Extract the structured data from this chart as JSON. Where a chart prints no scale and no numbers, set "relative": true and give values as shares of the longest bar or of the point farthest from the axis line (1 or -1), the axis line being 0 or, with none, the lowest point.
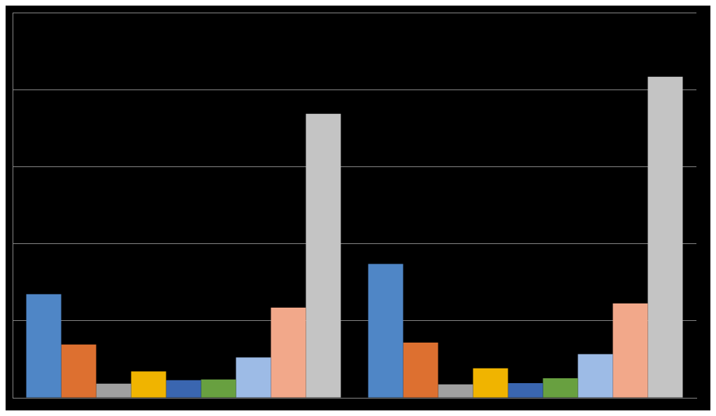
{
  "chart_data": {
    "type": "bar",
    "relative": true,
    "grid": "y",
    "legend": false,
    "categories": [
      null,
      null
    ],
    "series": [
      {
        "color": "#4f86c6",
        "values": [
          0.323,
          0.417
        ]
      },
      {
        "color": "#dd7030",
        "values": [
          0.166,
          0.172
        ]
      },
      {
        "color": "#a0a0a0",
        "values": [
          0.044,
          0.042
        ]
      },
      {
        "color": "#f0b400",
        "values": [
          0.082,
          0.092
        ]
      },
      {
        "color": "#3a66b0",
        "values": [
          0.055,
          0.046
        ]
      },
      {
        "color": "#68a040",
        "values": [
          0.057,
          0.061
        ]
      },
      {
        "color": "#9dbbe6",
        "values": [
          0.126,
          0.136
        ]
      },
      {
        "color": "#f2a88a",
        "values": [
          0.281,
          0.294
        ]
      },
      {
        "color": "#c4c4c4",
        "values": [
          0.885,
          1
        ]
      }
    ]
  }
}
